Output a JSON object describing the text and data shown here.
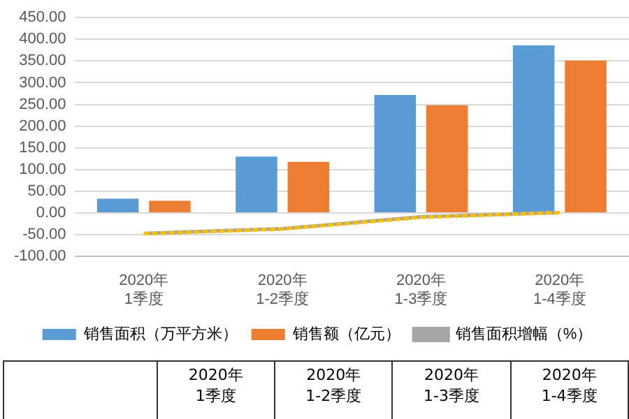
{
  "chart_data": {
    "type": "bar",
    "categories": [
      "2020年\n1季度",
      "2020年\n1-2季度",
      "2020年\n1-3季度",
      "2020年\n1-4季度"
    ],
    "series": [
      {
        "name": "销售面积（万平方米）",
        "color": "#5b9bd5",
        "values": [
          33,
          130,
          272,
          386
        ]
      },
      {
        "name": "销售额（亿元）",
        "color": "#ed7d31",
        "values": [
          28,
          118,
          248,
          351
        ]
      },
      {
        "name": "销售面积增幅（%）",
        "type": "line",
        "color": "#a5a5a5",
        "values": [
          -47,
          -36,
          -9,
          1
        ],
        "marker": "none",
        "line_style": "solid"
      },
      {
        "type": "line",
        "color": "#ffc000",
        "values": [
          -48,
          -37,
          -10,
          1
        ],
        "marker": "none",
        "line_style": "dashed"
      }
    ],
    "ylim": [
      -100,
      450
    ],
    "yticks": [
      {
        "value": -100,
        "label": "-100.00"
      },
      {
        "value": -50,
        "label": "-50.00"
      },
      {
        "value": 0,
        "label": "0.00"
      },
      {
        "value": 50,
        "label": "50.00"
      },
      {
        "value": 100,
        "label": "100.00"
      },
      {
        "value": 150,
        "label": "150.00"
      },
      {
        "value": 200,
        "label": "200.00"
      },
      {
        "value": 250,
        "label": "250.00"
      },
      {
        "value": 300,
        "label": "300.00"
      },
      {
        "value": 350,
        "label": "350.00"
      },
      {
        "value": 400,
        "label": "400.00"
      },
      {
        "value": 450,
        "label": "450.00"
      }
    ],
    "grid": "y",
    "legend": "bottom"
  }
}
